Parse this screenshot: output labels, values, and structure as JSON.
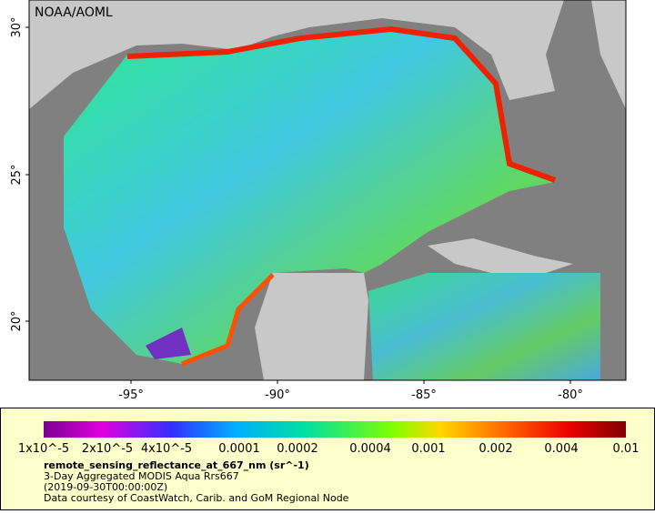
{
  "map": {
    "credit": "NOAA/AOML",
    "lat_labels": [
      "30°",
      "25°",
      "20°"
    ],
    "lon_labels": [
      "-95°",
      "-90°",
      "-85°",
      "-80°"
    ],
    "colorbar_labels": [
      "1x10^-5",
      "2x10^-5",
      "4x10^-5",
      "0.0001",
      "0.0002",
      "0.0004",
      "0.001",
      "0.002",
      "0.004",
      "0.01"
    ],
    "variable": "remote_sensing_reflectance_at_667_nm (sr^-1)",
    "dataset": "3-Day Aggregated MODIS Aqua Rrs667",
    "time": "(2019-09-30T00:00:00Z)",
    "source": "Data courtesy of CoastWatch, Carib. and GoM Regional Node"
  }
}
